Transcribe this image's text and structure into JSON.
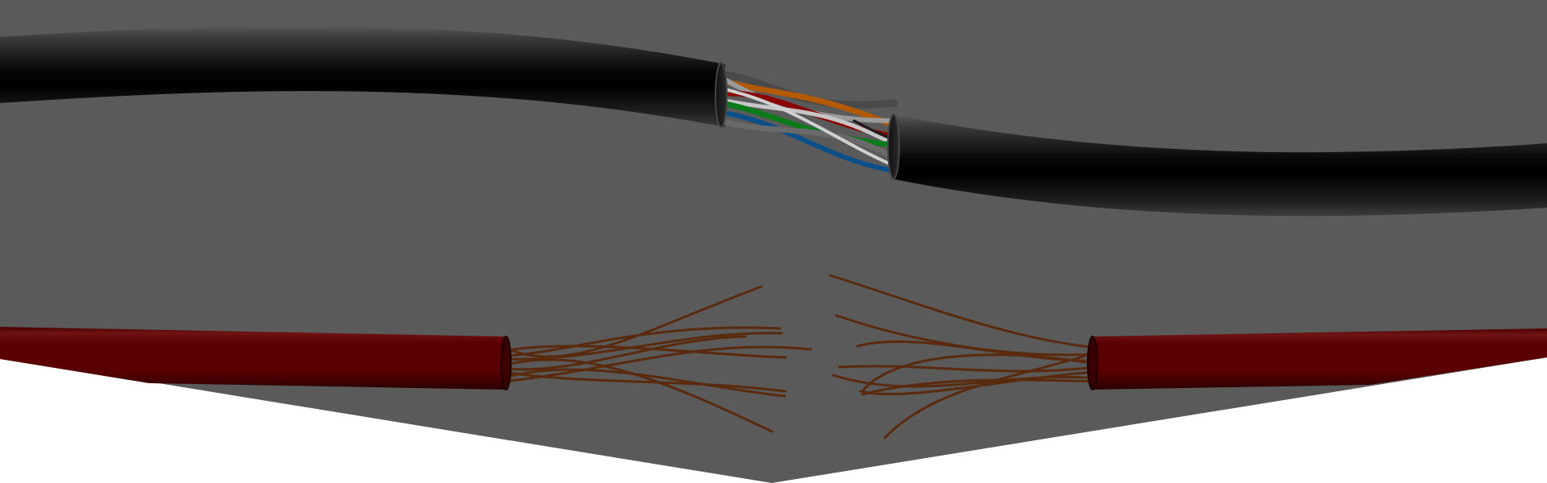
{
  "scene": {
    "description_label": "",
    "colors": {
      "background_panel": "#5a5a5a",
      "page_background": "#ffffff",
      "network_cable_jacket": "#000000",
      "power_cable_jacket": "#6a0000",
      "copper_strand": "#5a2a0e",
      "pair_orange": "#b35a00",
      "pair_red": "#8a0000",
      "pair_green": "#0a7a1a",
      "pair_blue": "#0a4e8a",
      "pair_white": "#bfbfbf"
    },
    "icons": [
      "broken-network-cable-icon",
      "broken-power-cable-icon"
    ]
  }
}
